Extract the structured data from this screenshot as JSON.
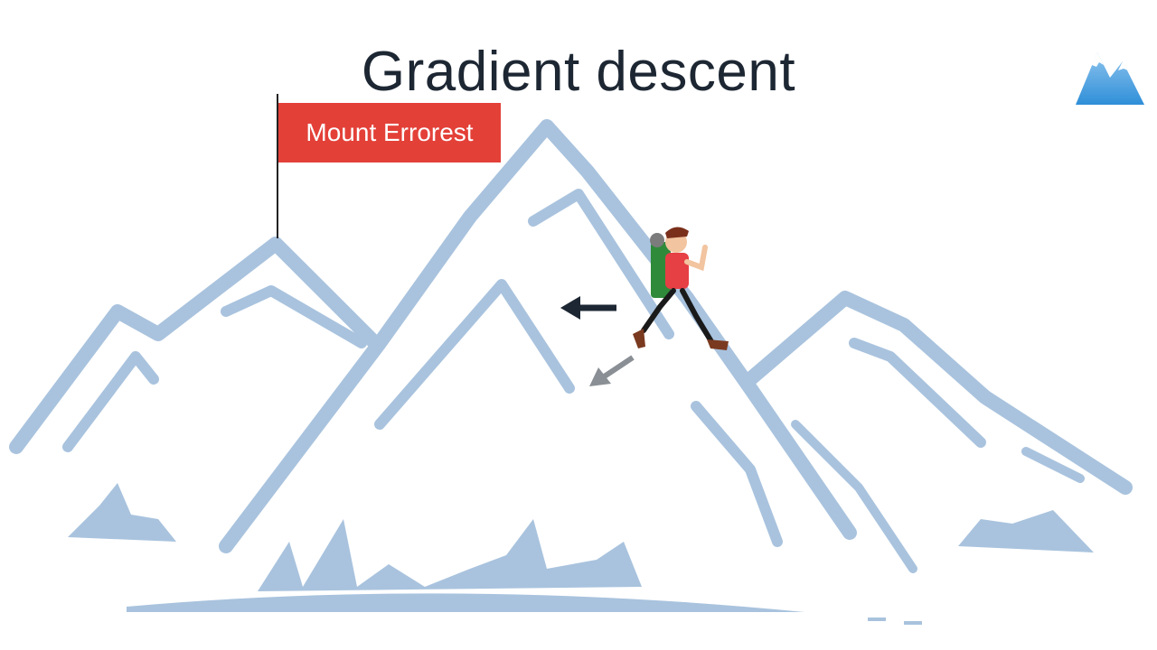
{
  "slide": {
    "title": "Gradient descent",
    "flag_label": "Mount Errorest"
  },
  "icons": {
    "logo": "mountain-logo-icon",
    "hiker": "hiker-icon",
    "arrow_left": "arrow-left-icon",
    "arrow_downleft": "arrow-down-left-icon"
  },
  "colors": {
    "mountain": "#a9c3de",
    "flag": "#e34038",
    "title": "#1d2733"
  }
}
